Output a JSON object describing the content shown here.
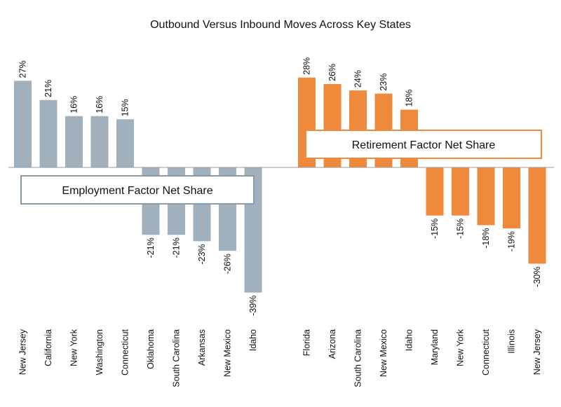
{
  "chart_data": {
    "type": "bar",
    "title": "Outbound Versus Inbound Moves Across Key States",
    "xlabel": "",
    "ylabel": "",
    "ylim": [
      -40,
      30
    ],
    "grid": false,
    "panels": [
      {
        "name": "Employment Factor Net Share",
        "color": "#a0b0bc",
        "categories": [
          "New Jersey",
          "California",
          "New York",
          "Washington",
          "Connecticut",
          "Oklahoma",
          "South Carolina",
          "Arkansas",
          "New Mexico",
          "Idaho"
        ],
        "values": [
          27,
          21,
          16,
          16,
          15,
          -21,
          -21,
          -23,
          -26,
          -39
        ],
        "labels": [
          "27%",
          "21%",
          "16%",
          "16%",
          "15%",
          "-21%",
          "-21%",
          "-23%",
          "-26%",
          "-39%"
        ]
      },
      {
        "name": "Retirement Factor Net Share",
        "color": "#ef8a3c",
        "categories": [
          "Florida",
          "Arizona",
          "South Carolina",
          "New Mexico",
          "Idaho",
          "Maryland",
          "New York",
          "Connecticut",
          "Illinois",
          "New Jersey"
        ],
        "values": [
          28,
          26,
          24,
          23,
          18,
          -15,
          -15,
          -18,
          -19,
          -30
        ],
        "labels": [
          "28%",
          "26%",
          "24%",
          "23%",
          "18%",
          "-15%",
          "-15%",
          "-18%",
          "-19%",
          "-30%"
        ]
      }
    ]
  }
}
